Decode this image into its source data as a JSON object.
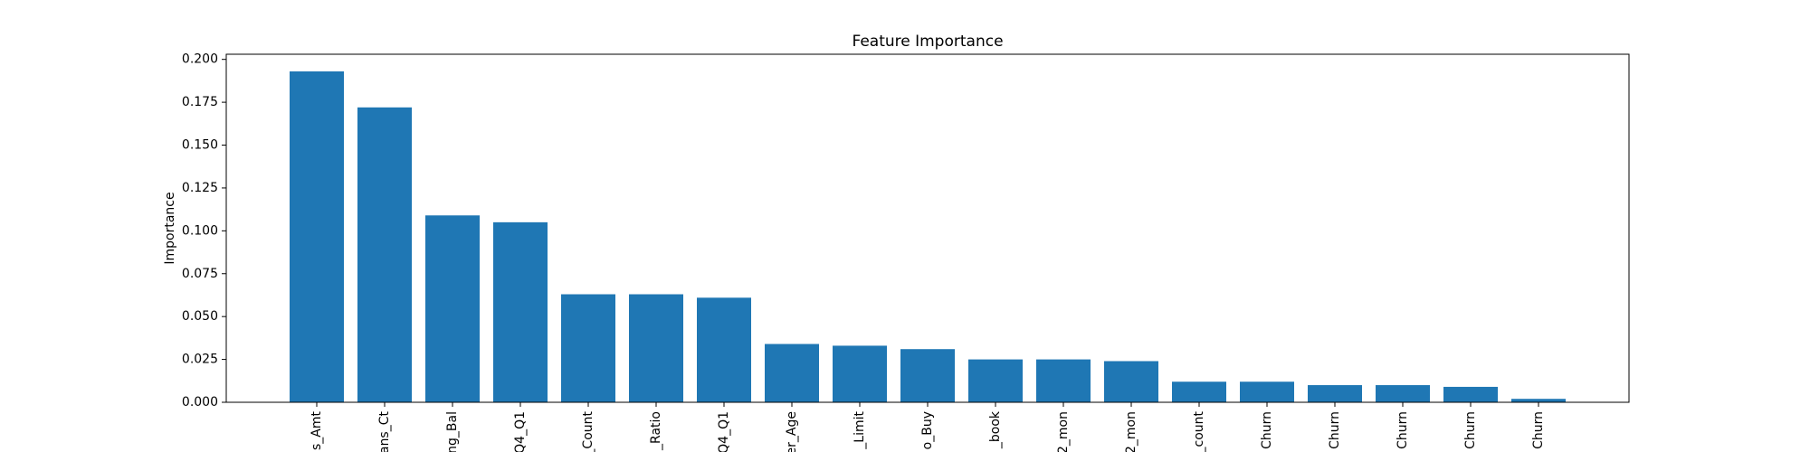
{
  "chart_data": {
    "type": "bar",
    "title": "Feature Importance",
    "xlabel": "",
    "ylabel": "Importance",
    "ylim": [
      0,
      0.203
    ],
    "yticks": [
      0.0,
      0.025,
      0.05,
      0.075,
      0.1,
      0.125,
      0.15,
      0.175,
      0.2
    ],
    "ytick_labels": [
      "0.000",
      "0.025",
      "0.050",
      "0.075",
      "0.100",
      "0.125",
      "0.150",
      "0.175",
      "0.200"
    ],
    "grid": false,
    "bar_color": "#1f77b4",
    "categories": [
      "s_Amt",
      "ans_Ct",
      "ng_Bal",
      "Q4_Q1",
      "_Count",
      "_Ratio",
      "Q4_Q1",
      "er_Age",
      "_Limit",
      "o_Buy",
      "_book",
      "2_mon",
      "2_mon",
      "_count",
      "Churn",
      "Churn",
      "Churn",
      "Churn",
      "Churn"
    ],
    "values": [
      0.193,
      0.172,
      0.109,
      0.105,
      0.063,
      0.063,
      0.061,
      0.034,
      0.033,
      0.031,
      0.025,
      0.025,
      0.024,
      0.012,
      0.012,
      0.01,
      0.01,
      0.009,
      0.002
    ]
  }
}
